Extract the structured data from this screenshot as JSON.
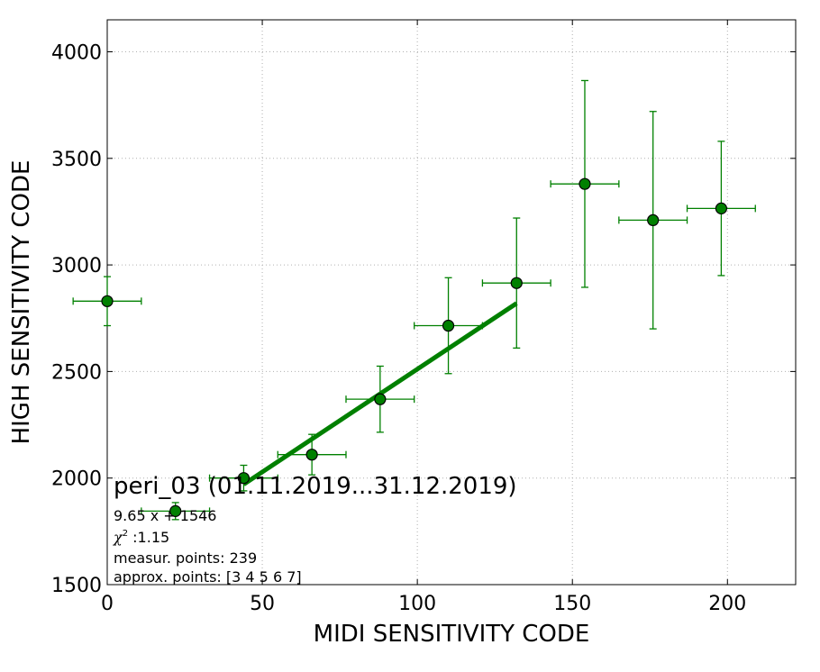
{
  "chart_data": {
    "type": "scatter",
    "xlabel": "MIDI SENSITIVITY CODE",
    "ylabel": "HIGH SENSITIVITY CODE",
    "xlim": [
      0,
      222
    ],
    "ylim": [
      1500,
      4150
    ],
    "xticks": [
      0,
      50,
      100,
      150,
      200
    ],
    "yticks": [
      1500,
      2000,
      2500,
      3000,
      3500,
      4000
    ],
    "grid": true,
    "colors": {
      "series": "#008000",
      "marker_edge": "#000000"
    },
    "points": [
      {
        "x": 0,
        "y": 2830,
        "xerr": 11,
        "yerr": 115
      },
      {
        "x": 22,
        "y": 1845,
        "xerr": 11,
        "yerr": 40
      },
      {
        "x": 44,
        "y": 2000,
        "xerr": 11,
        "yerr": 60
      },
      {
        "x": 66,
        "y": 2110,
        "xerr": 11,
        "yerr": 95
      },
      {
        "x": 88,
        "y": 2370,
        "xerr": 11,
        "yerr": 155
      },
      {
        "x": 110,
        "y": 2715,
        "xerr": 11,
        "yerr": 225
      },
      {
        "x": 132,
        "y": 2915,
        "xerr": 11,
        "yerr": 305
      },
      {
        "x": 154,
        "y": 3380,
        "xerr": 11,
        "yerr": 485
      },
      {
        "x": 176,
        "y": 3210,
        "xerr": 11,
        "yerr": 510
      },
      {
        "x": 198,
        "y": 3265,
        "xerr": 11,
        "yerr": 315
      }
    ],
    "fit_line": {
      "slope": 9.65,
      "intercept": 1546,
      "x_range": [
        44,
        132
      ]
    },
    "annotations": {
      "title": "peri_03 (01.11.2019...31.12.2019)",
      "equation": "9.65 x + 1546",
      "chi_symbol": "χ",
      "chi_superscript": "2",
      "chi_value": " :1.15",
      "measur_points": "measur. points: 239",
      "approx_points": "approx. points: [3 4 5 6 7]"
    }
  }
}
